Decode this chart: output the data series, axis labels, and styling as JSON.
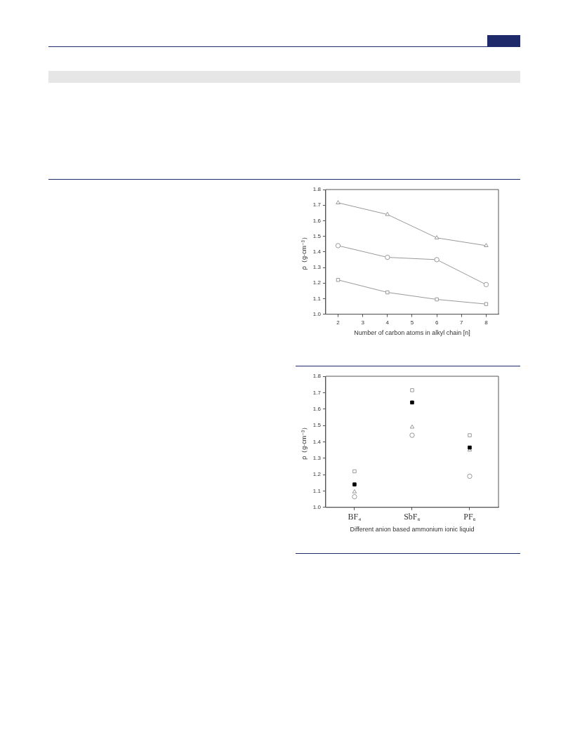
{
  "chart_data": [
    {
      "type": "line",
      "xlabel": "Number of carbon atoms in alkyl chain [n]",
      "ylabel": "ρ（g·cm⁻³）",
      "x": [
        2,
        4,
        6,
        8
      ],
      "xlim": [
        1.5,
        8.5
      ],
      "xticks": [
        2,
        3,
        4,
        5,
        6,
        7,
        8
      ],
      "ylim": [
        1.0,
        1.8
      ],
      "yticks": [
        {
          "value": 1,
          "label": "1.0"
        },
        1.1,
        1.2,
        1.3,
        1.4,
        1.5,
        1.6,
        1.7,
        1.8
      ],
      "grid": false,
      "legend": false,
      "line_style": "solid",
      "series": [
        {
          "color": "#999999",
          "marker": "triangle",
          "values": [
            1.715,
            1.64,
            1.49,
            1.44
          ]
        },
        {
          "color": "#999999",
          "marker": "circle",
          "values": [
            1.44,
            1.365,
            1.35,
            1.19
          ]
        },
        {
          "color": "#999999",
          "marker": "square",
          "values": [
            1.22,
            1.14,
            1.095,
            1.065
          ]
        }
      ]
    },
    {
      "type": "scatter",
      "xlabel": "Different anion based ammonium ionic liquid",
      "ylabel": "ρ（g·cm⁻³）",
      "categories": [
        "BF₄",
        "SbF₆",
        "PF₆"
      ],
      "ylim": [
        1.0,
        1.8
      ],
      "yticks": [
        {
          "value": 1,
          "label": "1.0"
        },
        1.1,
        1.2,
        1.3,
        1.4,
        1.5,
        1.6,
        1.7,
        1.8
      ],
      "grid": false,
      "legend": false,
      "series": [
        {
          "color": "#999999",
          "marker": "square",
          "values": [
            1.22,
            1.715,
            1.44
          ]
        },
        {
          "color": "#000000",
          "marker": "square",
          "values": [
            1.14,
            1.64,
            1.365
          ]
        },
        {
          "color": "#999999",
          "marker": "triangle",
          "values": [
            1.095,
            1.49,
            1.35
          ]
        },
        {
          "color": "#999999",
          "marker": "circle",
          "values": [
            1.065,
            1.44,
            1.19
          ]
        }
      ]
    }
  ]
}
